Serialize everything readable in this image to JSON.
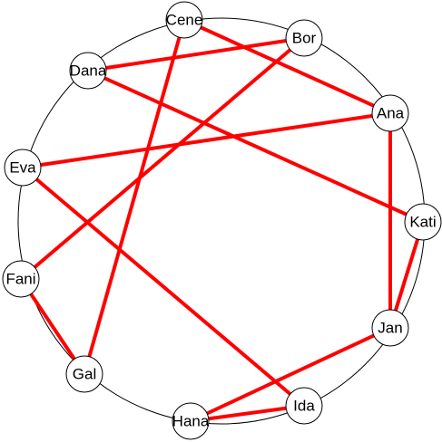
{
  "nodes": [
    {
      "label": "Cene"
    },
    {
      "label": "Bor"
    },
    {
      "label": "Dana"
    },
    {
      "label": "Ana"
    },
    {
      "label": "Eva"
    },
    {
      "label": "Kati"
    },
    {
      "label": "Fani"
    },
    {
      "label": "Jan"
    },
    {
      "label": "Gal"
    },
    {
      "label": "Ida"
    },
    {
      "label": "Hana"
    }
  ],
  "edges": [
    [
      0,
      3
    ],
    [
      0,
      8
    ],
    [
      1,
      2
    ],
    [
      1,
      6
    ],
    [
      2,
      5
    ],
    [
      4,
      3
    ],
    [
      4,
      9
    ],
    [
      3,
      7
    ],
    [
      5,
      7
    ],
    [
      6,
      8
    ],
    [
      7,
      10
    ],
    [
      10,
      9
    ]
  ]
}
